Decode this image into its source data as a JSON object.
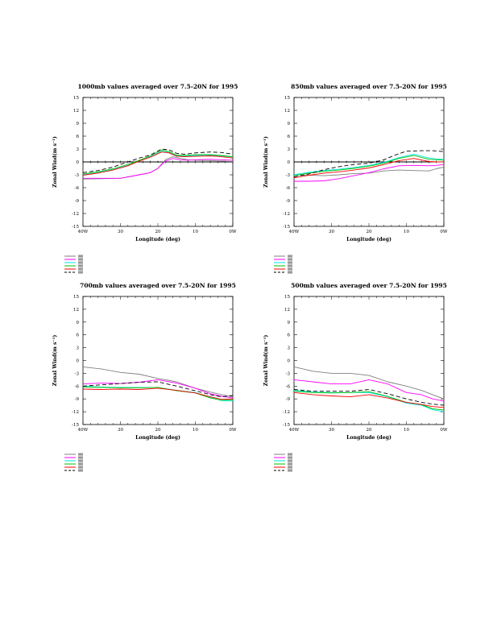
{
  "charts": [
    {
      "type": "line",
      "title": "1000mb values averaged over 7.5-20N for 1995",
      "xlabel": "Longitude (deg)",
      "ylabel": "Zonal Wind(m s⁻¹)",
      "xlim": [
        -40,
        0
      ],
      "ylim": [
        -15,
        15
      ],
      "xticks": [
        -40,
        -30,
        -20,
        -10,
        0
      ],
      "xtick_labels": [
        "40W",
        "30",
        "20",
        "10",
        "0W"
      ],
      "yticks": [
        15,
        12,
        9,
        6,
        3,
        0,
        -3,
        -6,
        -9,
        -12,
        -15
      ],
      "zero_line": true,
      "series": [
        {
          "color": "#808080",
          "dash": "",
          "x": [
            -40,
            -35,
            -30,
            -25,
            -22,
            -20,
            -18,
            -16,
            -14,
            -12,
            -10,
            -6,
            -3,
            0
          ],
          "y": [
            -4,
            -3.9,
            -3.8,
            -3,
            -2.5,
            -1.5,
            0.5,
            1.2,
            0.8,
            0.5,
            0.4,
            0.3,
            0.2,
            0.1
          ]
        },
        {
          "color": "#ff00ff",
          "dash": "",
          "x": [
            -40,
            -35,
            -30,
            -25,
            -22,
            -20,
            -18,
            -16,
            -14,
            -12,
            -10,
            -6,
            -3,
            0
          ],
          "y": [
            -3.8,
            -3.8,
            -3.8,
            -3,
            -2.5,
            -1.5,
            0.2,
            0.8,
            0.5,
            0.4,
            0.5,
            0.6,
            0.5,
            0.4
          ]
        },
        {
          "color": "#00e5e5",
          "dash": "",
          "x": [
            -40,
            -36,
            -32,
            -28,
            -25,
            -22,
            -19,
            -17,
            -15,
            -13,
            -10,
            -6,
            -3,
            0
          ],
          "y": [
            -3,
            -2.5,
            -1.8,
            -0.8,
            0.2,
            1.2,
            2.5,
            2.2,
            1.4,
            1.3,
            1.5,
            1.6,
            1.4,
            1.1
          ]
        },
        {
          "color": "#00c000",
          "dash": "",
          "x": [
            -40,
            -36,
            -32,
            -28,
            -25,
            -22,
            -19,
            -17,
            -15,
            -13,
            -10,
            -6,
            -3,
            0
          ],
          "y": [
            -2.8,
            -2.3,
            -1.6,
            -0.6,
            0.4,
            1.4,
            2.8,
            2.4,
            1.6,
            1.5,
            1.7,
            1.7,
            1.5,
            1.2
          ]
        },
        {
          "color": "#ff0000",
          "dash": "",
          "x": [
            -40,
            -36,
            -32,
            -28,
            -25,
            -22,
            -19,
            -17,
            -15,
            -13,
            -10,
            -6,
            -3,
            0
          ],
          "y": [
            -3.1,
            -2.6,
            -1.9,
            -0.9,
            0.2,
            1.1,
            2.3,
            2.1,
            1.3,
            1.2,
            1.3,
            1.4,
            1.2,
            0.9
          ]
        },
        {
          "color": "#000000",
          "dash": "5,3",
          "x": [
            -40,
            -36,
            -32,
            -28,
            -25,
            -22,
            -19,
            -17,
            -15,
            -13,
            -10,
            -6,
            -3,
            0
          ],
          "y": [
            -2.5,
            -2,
            -1.2,
            0,
            0.9,
            1.6,
            3,
            2.8,
            2,
            1.8,
            2.1,
            2.3,
            2.2,
            1.8
          ]
        }
      ]
    },
    {
      "type": "line",
      "title": "850mb values averaged over 7.5-20N for 1995",
      "xlabel": "Longitude (deg)",
      "ylabel": "Zonal Wind(m s⁻¹)",
      "xlim": [
        -40,
        0
      ],
      "ylim": [
        -15,
        15
      ],
      "xticks": [
        -40,
        -30,
        -20,
        -10,
        0
      ],
      "xtick_labels": [
        "40W",
        "30",
        "20",
        "10",
        "0W"
      ],
      "yticks": [
        15,
        12,
        9,
        6,
        3,
        0,
        -3,
        -6,
        -9,
        -12,
        -15
      ],
      "zero_line": true,
      "series": [
        {
          "color": "#808080",
          "dash": "",
          "x": [
            -40,
            -36,
            -32,
            -28,
            -24,
            -20,
            -16,
            -12,
            -8,
            -4,
            -2,
            0
          ],
          "y": [
            -3,
            -3.1,
            -3.2,
            -3,
            -2.7,
            -2.6,
            -2.1,
            -1.9,
            -2,
            -2.1,
            -1.6,
            -1.2
          ]
        },
        {
          "color": "#ff00ff",
          "dash": "",
          "x": [
            -40,
            -36,
            -32,
            -28,
            -24,
            -20,
            -16,
            -12,
            -8,
            -4,
            -2,
            0
          ],
          "y": [
            -4.5,
            -4.5,
            -4.4,
            -3.9,
            -3.2,
            -2.5,
            -1.6,
            -0.9,
            -0.8,
            -0.9,
            -0.8,
            -0.6
          ]
        },
        {
          "color": "#00e5e5",
          "dash": "",
          "x": [
            -40,
            -36,
            -32,
            -28,
            -24,
            -20,
            -16,
            -12,
            -8,
            -4,
            -2,
            0
          ],
          "y": [
            -3,
            -2.4,
            -2,
            -1.7,
            -1.3,
            -0.8,
            -0.1,
            1,
            1.8,
            0.9,
            0.7,
            0.6
          ]
        },
        {
          "color": "#00c000",
          "dash": "",
          "x": [
            -40,
            -36,
            -32,
            -28,
            -24,
            -20,
            -16,
            -12,
            -8,
            -4,
            -2,
            0
          ],
          "y": [
            -3.2,
            -2.6,
            -2.2,
            -1.9,
            -1.5,
            -1,
            -0.3,
            0.8,
            1.5,
            0.6,
            0.5,
            0.4
          ]
        },
        {
          "color": "#ff0000",
          "dash": "",
          "x": [
            -40,
            -36,
            -32,
            -28,
            -24,
            -20,
            -16,
            -12,
            -8,
            -4,
            -2,
            0
          ],
          "y": [
            -3.7,
            -3.1,
            -2.6,
            -2.3,
            -1.9,
            -1.4,
            -0.6,
            0.3,
            0.8,
            0.1,
            0,
            0
          ]
        },
        {
          "color": "#000000",
          "dash": "5,3",
          "x": [
            -40,
            -36,
            -32,
            -28,
            -24,
            -20,
            -16,
            -13,
            -10,
            -6,
            -3,
            0
          ],
          "y": [
            -3.5,
            -2.8,
            -1.8,
            -1.1,
            -0.6,
            -0.3,
            0.5,
            1.6,
            2.5,
            2.6,
            2.6,
            2.4
          ]
        }
      ]
    },
    {
      "type": "line",
      "title": "700mb values averaged over 7.5-20N for 1995",
      "xlabel": "Longitude (deg)",
      "ylabel": "Zonal Wind(m s⁻¹)",
      "xlim": [
        -40,
        0
      ],
      "ylim": [
        -15,
        15
      ],
      "xticks": [
        -40,
        -30,
        -20,
        -10,
        0
      ],
      "xtick_labels": [
        "40W",
        "30",
        "20",
        "10",
        "0W"
      ],
      "yticks": [
        15,
        12,
        9,
        6,
        3,
        0,
        -3,
        -6,
        -9,
        -12,
        -15
      ],
      "zero_line": false,
      "series": [
        {
          "color": "#808080",
          "dash": "",
          "x": [
            -40,
            -35,
            -30,
            -25,
            -20,
            -15,
            -10,
            -6,
            -3,
            0
          ],
          "y": [
            -1.5,
            -2,
            -2.8,
            -3.2,
            -4.2,
            -5,
            -6.5,
            -7.4,
            -8,
            -8.5
          ]
        },
        {
          "color": "#ff00ff",
          "dash": "",
          "x": [
            -40,
            -35,
            -30,
            -25,
            -20,
            -15,
            -10,
            -6,
            -3,
            0
          ],
          "y": [
            -5.5,
            -5.3,
            -5.4,
            -5.1,
            -4.5,
            -5.3,
            -6.5,
            -7.8,
            -8.4,
            -8.8
          ]
        },
        {
          "color": "#00e5e5",
          "dash": "",
          "x": [
            -40,
            -35,
            -30,
            -25,
            -20,
            -15,
            -10,
            -6,
            -3,
            0
          ],
          "y": [
            -6,
            -6.2,
            -6.3,
            -6.3,
            -6.3,
            -7,
            -7.5,
            -8.6,
            -9.4,
            -9.5
          ]
        },
        {
          "color": "#00c000",
          "dash": "",
          "x": [
            -40,
            -35,
            -30,
            -25,
            -20,
            -15,
            -10,
            -6,
            -3,
            0
          ],
          "y": [
            -6.2,
            -6.3,
            -6.4,
            -6.4,
            -6.3,
            -7.1,
            -7.6,
            -8.8,
            -9.3,
            -9.2
          ]
        },
        {
          "color": "#ff0000",
          "dash": "",
          "x": [
            -40,
            -35,
            -30,
            -25,
            -20,
            -15,
            -10,
            -6,
            -3,
            0
          ],
          "y": [
            -6.7,
            -6.8,
            -6.7,
            -6.8,
            -6.5,
            -7,
            -7.6,
            -8.5,
            -9.1,
            -9
          ]
        },
        {
          "color": "#000000",
          "dash": "5,3",
          "x": [
            -40,
            -35,
            -30,
            -25,
            -20,
            -15,
            -10,
            -6,
            -3,
            0
          ],
          "y": [
            -6,
            -5.7,
            -5.4,
            -5.1,
            -5,
            -6,
            -7.1,
            -8,
            -8.5,
            -8.2
          ]
        }
      ]
    },
    {
      "type": "line",
      "title": "500mb values averaged over 7.5-20N for 1995",
      "xlabel": "Longitude (deg)",
      "ylabel": "Zonal Wind(m s⁻¹)",
      "xlim": [
        -40,
        0
      ],
      "ylim": [
        -15,
        15
      ],
      "xticks": [
        -40,
        -30,
        -20,
        -10,
        0
      ],
      "xtick_labels": [
        "40W",
        "30",
        "20",
        "10",
        "0W"
      ],
      "yticks": [
        15,
        12,
        9,
        6,
        3,
        0,
        -3,
        -6,
        -9,
        -12,
        -15
      ],
      "zero_line": false,
      "series": [
        {
          "color": "#808080",
          "dash": "",
          "x": [
            -40,
            -35,
            -30,
            -25,
            -20,
            -15,
            -10,
            -6,
            -3,
            0
          ],
          "y": [
            -1.5,
            -2.5,
            -3,
            -3,
            -3.5,
            -5,
            -6,
            -7,
            -8,
            -9
          ]
        },
        {
          "color": "#ff00ff",
          "dash": "",
          "x": [
            -40,
            -35,
            -30,
            -25,
            -20,
            -15,
            -10,
            -6,
            -3,
            0
          ],
          "y": [
            -4.5,
            -5,
            -5.5,
            -5.5,
            -4.5,
            -5.5,
            -7.5,
            -8,
            -9,
            -9.5
          ]
        },
        {
          "color": "#00e5e5",
          "dash": "",
          "x": [
            -40,
            -35,
            -30,
            -25,
            -20,
            -15,
            -10,
            -6,
            -3,
            0
          ],
          "y": [
            -7,
            -7.4,
            -7.5,
            -7.5,
            -7.5,
            -8.5,
            -10,
            -10.5,
            -11.5,
            -12
          ]
        },
        {
          "color": "#00c000",
          "dash": "",
          "x": [
            -40,
            -35,
            -30,
            -25,
            -20,
            -15,
            -10,
            -6,
            -3,
            0
          ],
          "y": [
            -7.2,
            -7.5,
            -7.6,
            -7.5,
            -7.3,
            -8.4,
            -9.8,
            -10.3,
            -11.3,
            -11.6
          ]
        },
        {
          "color": "#ff0000",
          "dash": "",
          "x": [
            -40,
            -35,
            -30,
            -25,
            -20,
            -15,
            -10,
            -6,
            -3,
            0
          ],
          "y": [
            -7.5,
            -8,
            -8.3,
            -8.5,
            -8,
            -8.8,
            -9.8,
            -10.3,
            -10.8,
            -11
          ]
        },
        {
          "color": "#000000",
          "dash": "5,3",
          "x": [
            -40,
            -35,
            -30,
            -25,
            -20,
            -15,
            -10,
            -6,
            -3,
            0
          ],
          "y": [
            -6.8,
            -7.2,
            -7.2,
            -7.2,
            -6.8,
            -7.8,
            -9,
            -9.8,
            -10.2,
            -10.5
          ]
        }
      ]
    }
  ]
}
